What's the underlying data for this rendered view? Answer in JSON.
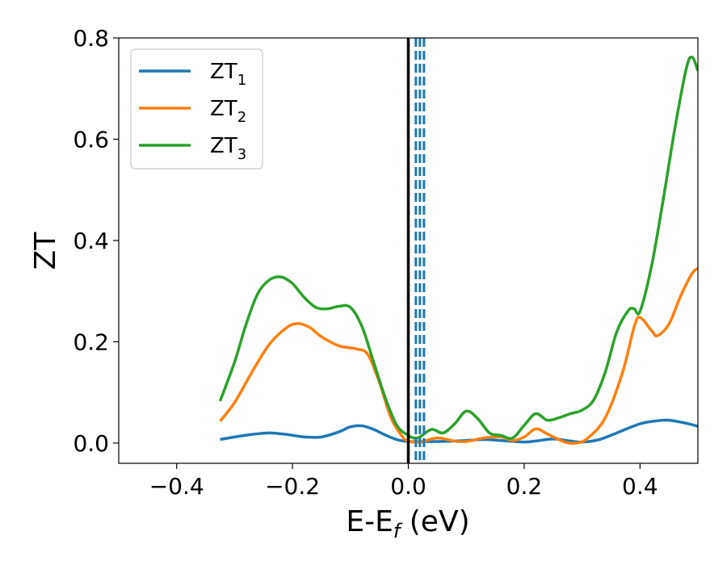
{
  "chart_data": {
    "type": "line",
    "xlabel": {
      "main": "E-E",
      "sub": "f",
      "rest": " (eV)"
    },
    "ylabel": "ZT",
    "xlim": [
      -0.5,
      0.5
    ],
    "ylim": [
      -0.04,
      0.8
    ],
    "xticks": [
      -0.4,
      -0.2,
      0.0,
      0.2,
      0.4
    ],
    "xtick_labels": [
      "−0.4",
      "−0.2",
      "0.0",
      "0.2",
      "0.4"
    ],
    "yticks": [
      0.0,
      0.2,
      0.4,
      0.6,
      0.8
    ],
    "ytick_labels": [
      "0.0",
      "0.2",
      "0.4",
      "0.6",
      "0.8"
    ],
    "grid": false,
    "legend_position": "top-left",
    "vertical_lines": [
      {
        "x": 0.0,
        "style": "solid",
        "color": "#000000"
      },
      {
        "x": 0.013,
        "style": "dashed",
        "color": "#1f77b4"
      },
      {
        "x": 0.02,
        "style": "dashed",
        "color": "#1f77b4"
      },
      {
        "x": 0.027,
        "style": "dashed",
        "color": "#1f77b4"
      }
    ],
    "series": [
      {
        "name": "ZT",
        "sub": "1",
        "color": "#1f77b4",
        "x": [
          -0.325,
          -0.3,
          -0.27,
          -0.24,
          -0.21,
          -0.18,
          -0.15,
          -0.12,
          -0.1,
          -0.08,
          -0.06,
          -0.04,
          -0.02,
          0.0,
          0.02,
          0.05,
          0.08,
          0.1,
          0.13,
          0.16,
          0.2,
          0.22,
          0.25,
          0.28,
          0.3,
          0.33,
          0.36,
          0.4,
          0.43,
          0.45,
          0.48,
          0.5
        ],
        "y": [
          0.007,
          0.012,
          0.017,
          0.02,
          0.017,
          0.012,
          0.012,
          0.022,
          0.032,
          0.034,
          0.027,
          0.016,
          0.007,
          0.003,
          0.003,
          0.003,
          0.004,
          0.005,
          0.007,
          0.005,
          0.002,
          0.004,
          0.008,
          0.004,
          0.002,
          0.007,
          0.02,
          0.038,
          0.044,
          0.045,
          0.039,
          0.033
        ]
      },
      {
        "name": "ZT",
        "sub": "2",
        "color": "#ff7f0e",
        "x": [
          -0.325,
          -0.3,
          -0.27,
          -0.24,
          -0.21,
          -0.19,
          -0.17,
          -0.15,
          -0.12,
          -0.09,
          -0.07,
          -0.05,
          -0.03,
          -0.01,
          0.0,
          0.02,
          0.05,
          0.08,
          0.1,
          0.13,
          0.16,
          0.18,
          0.2,
          0.22,
          0.24,
          0.27,
          0.29,
          0.31,
          0.34,
          0.37,
          0.39,
          0.4,
          0.42,
          0.43,
          0.45,
          0.47,
          0.49,
          0.5
        ],
        "y": [
          0.043,
          0.08,
          0.14,
          0.195,
          0.228,
          0.236,
          0.228,
          0.21,
          0.192,
          0.186,
          0.175,
          0.12,
          0.05,
          0.012,
          0.004,
          0.002,
          0.01,
          0.004,
          0.003,
          0.01,
          0.012,
          0.005,
          0.012,
          0.028,
          0.018,
          0.002,
          0.0,
          0.01,
          0.05,
          0.14,
          0.23,
          0.248,
          0.222,
          0.212,
          0.235,
          0.29,
          0.335,
          0.345
        ]
      },
      {
        "name": "ZT",
        "sub": "3",
        "color": "#2ca02c",
        "x": [
          -0.325,
          -0.3,
          -0.28,
          -0.26,
          -0.24,
          -0.22,
          -0.2,
          -0.18,
          -0.16,
          -0.14,
          -0.12,
          -0.1,
          -0.08,
          -0.06,
          -0.04,
          -0.02,
          0.0,
          0.01,
          0.02,
          0.04,
          0.06,
          0.08,
          0.1,
          0.12,
          0.14,
          0.16,
          0.18,
          0.2,
          0.22,
          0.24,
          0.26,
          0.28,
          0.3,
          0.32,
          0.34,
          0.36,
          0.38,
          0.39,
          0.4,
          0.42,
          0.44,
          0.46,
          0.48,
          0.49,
          0.5
        ],
        "y": [
          0.083,
          0.16,
          0.235,
          0.295,
          0.322,
          0.328,
          0.315,
          0.288,
          0.268,
          0.265,
          0.27,
          0.268,
          0.23,
          0.16,
          0.09,
          0.035,
          0.015,
          0.01,
          0.012,
          0.027,
          0.02,
          0.038,
          0.063,
          0.048,
          0.02,
          0.015,
          0.01,
          0.035,
          0.058,
          0.045,
          0.05,
          0.058,
          0.065,
          0.085,
          0.14,
          0.22,
          0.262,
          0.265,
          0.26,
          0.35,
          0.48,
          0.62,
          0.74,
          0.762,
          0.735
        ]
      }
    ]
  }
}
